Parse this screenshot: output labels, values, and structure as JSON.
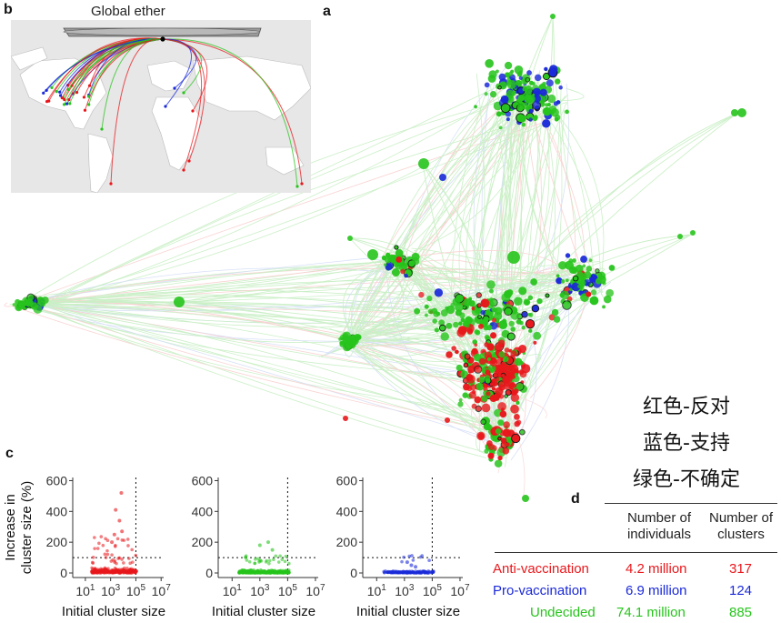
{
  "panels": {
    "a": "a",
    "b": "b",
    "c": "c",
    "d": "d"
  },
  "inset": {
    "title": "Global ether"
  },
  "legend_cn": [
    "红色-反对",
    "蓝色-支持",
    "绿色-不确定"
  ],
  "colors": {
    "anti": "#e8171b",
    "pro": "#1a29d9",
    "undecided": "#27c41c",
    "undecided_light": "#7ee86f"
  },
  "table": {
    "col_individuals": [
      "Number of",
      "individuals"
    ],
    "col_clusters": [
      "Number of",
      "clusters"
    ],
    "rows": [
      {
        "label": "Anti-vaccination",
        "individuals": "4.2 million",
        "clusters": "317",
        "color": "#e8171b"
      },
      {
        "label": "Pro-vaccination",
        "individuals": "6.9 million",
        "clusters": "124",
        "color": "#1a29d9"
      },
      {
        "label": "Undecided",
        "individuals": "74.1 million",
        "clusters": "885",
        "color": "#27c41c"
      }
    ]
  },
  "chart_data": [
    {
      "type": "scatter",
      "series": [
        {
          "name": "Anti-vaccination",
          "color": "#e8171b"
        }
      ],
      "xlabel": "Initial cluster size",
      "ylabel": "Increase in cluster size (%)",
      "xscale": "log",
      "x_ticks": [
        "10^1",
        "10^3",
        "10^5",
        "10^7"
      ],
      "y_ticks": [
        0,
        200,
        400,
        600
      ],
      "ylim": [
        0,
        650
      ],
      "reference_x": 100000,
      "reference_y": 100
    },
    {
      "type": "scatter",
      "series": [
        {
          "name": "Undecided",
          "color": "#27c41c"
        }
      ],
      "xlabel": "Initial cluster size",
      "xscale": "log",
      "x_ticks": [
        "10^1",
        "10^3",
        "10^5",
        "10^7"
      ],
      "y_ticks": [
        0,
        200,
        400,
        600
      ],
      "ylim": [
        0,
        650
      ],
      "reference_x": 100000,
      "reference_y": 100
    },
    {
      "type": "scatter",
      "series": [
        {
          "name": "Pro-vaccination",
          "color": "#1a29d9"
        }
      ],
      "xlabel": "Initial cluster size",
      "xscale": "log",
      "x_ticks": [
        "10^1",
        "10^3",
        "10^5",
        "10^7"
      ],
      "y_ticks": [
        0,
        200,
        400,
        600
      ],
      "ylim": [
        0,
        650
      ],
      "reference_x": 100000,
      "reference_y": 100
    }
  ]
}
